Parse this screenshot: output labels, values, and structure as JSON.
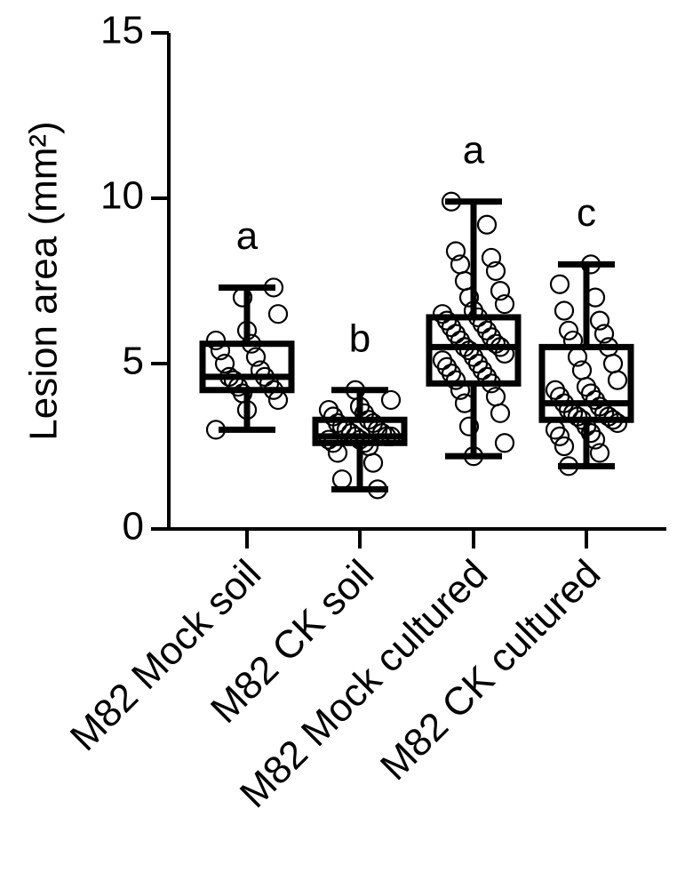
{
  "chart_data": {
    "type": "box",
    "y_label": "Lesion area (mm²)",
    "categories": [
      "M82 Mock soil",
      "M82 CK soil",
      "M82 Mock cultured",
      "M82 CK cultured"
    ],
    "boxes": [
      {
        "min": 3.0,
        "q1": 4.2,
        "median": 4.6,
        "q3": 5.6,
        "max": 7.3
      },
      {
        "min": 1.2,
        "q1": 2.6,
        "median": 2.8,
        "q3": 3.3,
        "max": 4.2
      },
      {
        "min": 2.2,
        "q1": 4.4,
        "median": 5.5,
        "q3": 6.4,
        "max": 9.9
      },
      {
        "min": 1.9,
        "q1": 3.3,
        "median": 3.8,
        "q3": 5.5,
        "max": 8.0
      }
    ],
    "points": [
      [
        3.0,
        3.6,
        3.9,
        4.1,
        4.2,
        4.3,
        4.4,
        4.5,
        4.6,
        4.6,
        4.8,
        5.0,
        5.2,
        5.4,
        5.6,
        5.7,
        6.0,
        6.5,
        7.0,
        7.3
      ],
      [
        1.2,
        1.5,
        2.0,
        2.3,
        2.5,
        2.6,
        2.6,
        2.7,
        2.7,
        2.8,
        2.8,
        2.8,
        2.9,
        2.9,
        3.0,
        3.0,
        3.1,
        3.2,
        3.2,
        3.3,
        3.4,
        3.5,
        3.6,
        3.7,
        3.9,
        4.2
      ],
      [
        2.2,
        2.6,
        3.1,
        3.5,
        3.8,
        4.0,
        4.2,
        4.4,
        4.5,
        4.6,
        4.7,
        4.8,
        4.9,
        5.0,
        5.1,
        5.2,
        5.3,
        5.4,
        5.5,
        5.5,
        5.6,
        5.7,
        5.8,
        5.9,
        6.0,
        6.1,
        6.2,
        6.3,
        6.4,
        6.5,
        6.6,
        6.8,
        7.0,
        7.2,
        7.5,
        7.8,
        8.0,
        8.2,
        8.4,
        9.2,
        9.9
      ],
      [
        1.9,
        2.3,
        2.5,
        2.7,
        2.8,
        2.9,
        3.0,
        3.1,
        3.2,
        3.3,
        3.3,
        3.4,
        3.4,
        3.5,
        3.5,
        3.6,
        3.7,
        3.8,
        3.9,
        4.0,
        4.1,
        4.2,
        4.3,
        4.5,
        4.8,
        5.0,
        5.2,
        5.5,
        5.7,
        5.9,
        6.0,
        6.3,
        6.6,
        7.0,
        7.4,
        8.0
      ]
    ],
    "annotations": [
      "a",
      "b",
      "a",
      "c"
    ],
    "color": "#000000",
    "ylim": [
      0,
      15
    ],
    "yticks": [
      0,
      5,
      10,
      15
    ]
  }
}
